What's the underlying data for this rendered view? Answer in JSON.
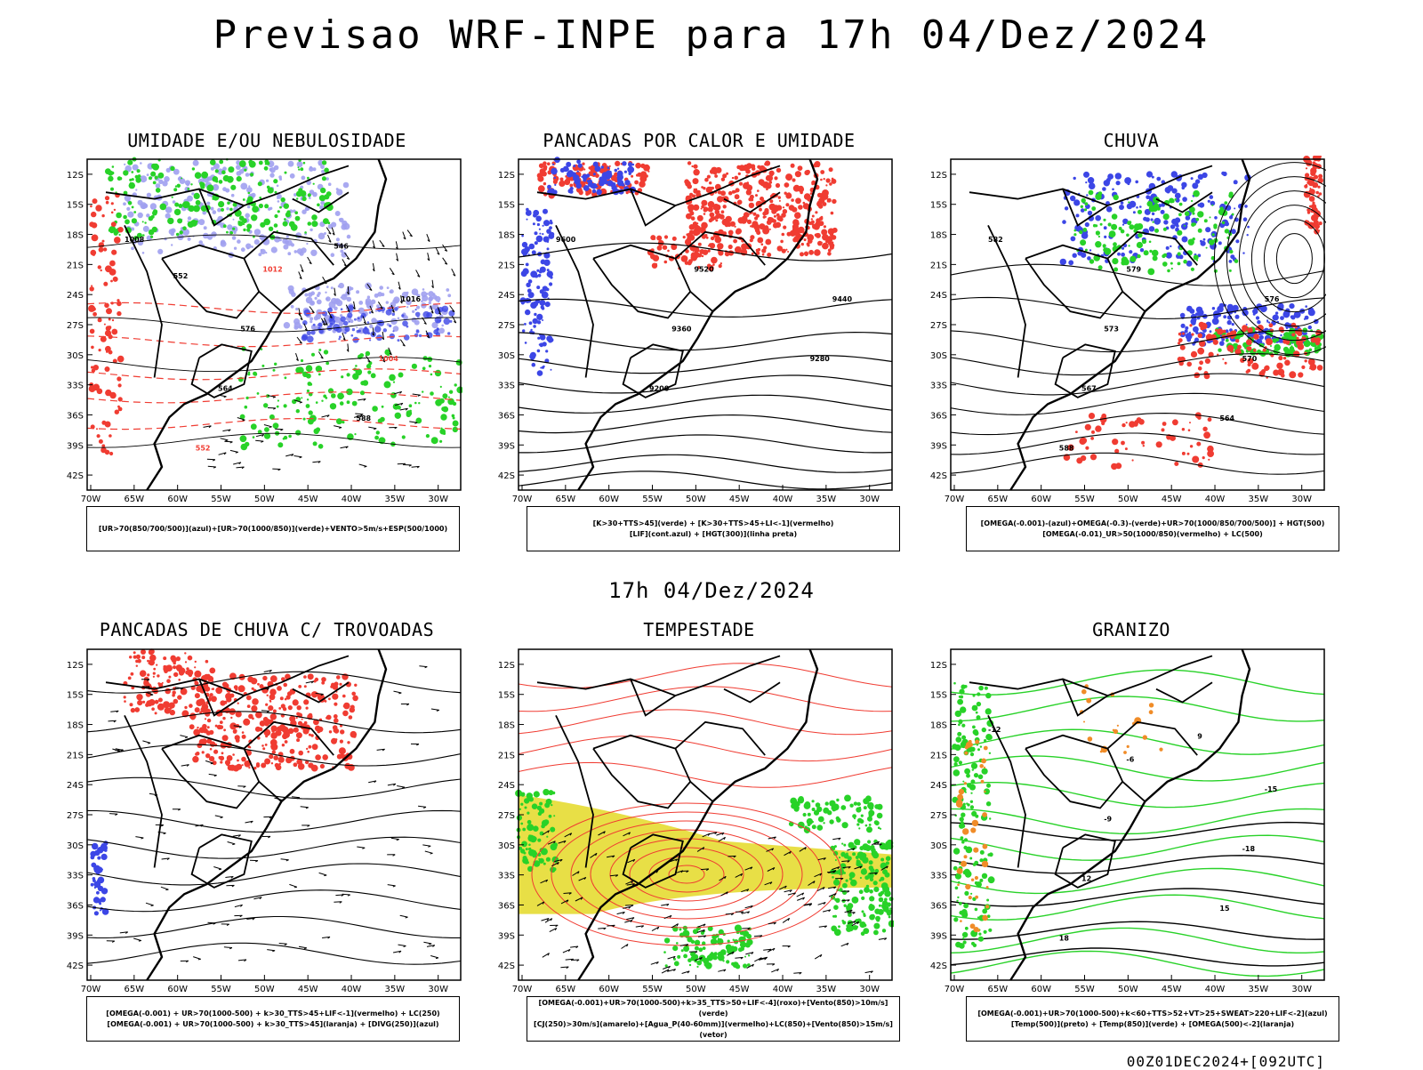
{
  "title": "Previsao WRF-INPE  para 17h 04/Dez/2024",
  "subtitle": "17h 04/Dez/2024",
  "footer": "00Z01DEC2024+[092UTC]",
  "axes": {
    "lat_labels": [
      "12S",
      "15S",
      "18S",
      "21S",
      "24S",
      "27S",
      "30S",
      "33S",
      "36S",
      "39S",
      "42S"
    ],
    "lon_labels": [
      "70W",
      "65W",
      "60W",
      "55W",
      "50W",
      "45W",
      "40W",
      "35W",
      "30W"
    ]
  },
  "panels": [
    {
      "title": "UMIDADE E/OU NEBULOSIDADE",
      "legend": [
        "[UR>70(850/700/500)](azul)+[UR>70(1000/850)](verde)+VENTO>5m/s+ESP(500/1000)"
      ],
      "labels": [
        "1008",
        "1012",
        "1016",
        "576",
        "1004",
        "564",
        "588",
        "552",
        "546",
        "552"
      ]
    },
    {
      "title": "PANCADAS POR CALOR E UMIDADE",
      "legend": [
        "[K>30+TTS>45](verde) + [K>30+TTS>45+LI<-1](vermelho)",
        "[LIF](cont.azul) + [HGT(300)](linha preta)"
      ],
      "labels": [
        "9600",
        "9520",
        "9440",
        "9360",
        "9280",
        "9200"
      ]
    },
    {
      "title": "CHUVA",
      "legend": [
        "[OMEGA(-0.001)-(azul)+OMEGA(-0.3)-(verde)+UR>70(1000/850/700/500)] + HGT(500)",
        "[OMEGA(-0.01)_UR>50(1000/850)(vermelho) + LC(500)"
      ],
      "labels": [
        "582",
        "579",
        "576",
        "573",
        "570",
        "567",
        "564",
        "588"
      ]
    },
    {
      "title": "PANCADAS DE CHUVA C/ TROVOADAS",
      "legend": [
        "[OMEGA(-0.001) + UR>70(1000-500) + k>30_TTS>45+LIF<-1](vermelho) + LC(250)",
        "[OMEGA(-0.001) + UR>70(1000-500) + k>30_TTS>45](laranja) + [DIVG(250)](azul)"
      ],
      "labels": []
    },
    {
      "title": "TEMPESTADE",
      "legend": [
        "[OMEGA(-0.001)+UR>70(1000-500)+k>35_TTS>50+LIF<-4](roxo)+[Vento(850)>10m/s](verde)",
        "[CJ(250)>30m/s](amarelo)+[Agua_P(40-60mm)](vermelho)+LC(850)+[Vento(850)>15m/s](vetor)"
      ],
      "labels": []
    },
    {
      "title": "GRANIZO",
      "legend": [
        "[OMEGA(-0.001)+UR>70(1000-500)+k<60+TTS>52+VT>25+SWEAT>220+LIF<-2](azul)",
        "[Temp(500)](preto) + [Temp(850)](verde) + [OMEGA(500)<-2](laranja)"
      ],
      "labels": [
        "-12",
        "-6",
        "-15",
        "-9",
        "-18",
        "12",
        "15",
        "18",
        "9"
      ]
    }
  ],
  "colors": {
    "red": "#f03c32",
    "green": "#28d228",
    "blue": "#3c46e6",
    "lightblue": "#a0a0f0",
    "yellow": "#e6dc32",
    "orange": "#f08c28",
    "black": "#000000"
  }
}
